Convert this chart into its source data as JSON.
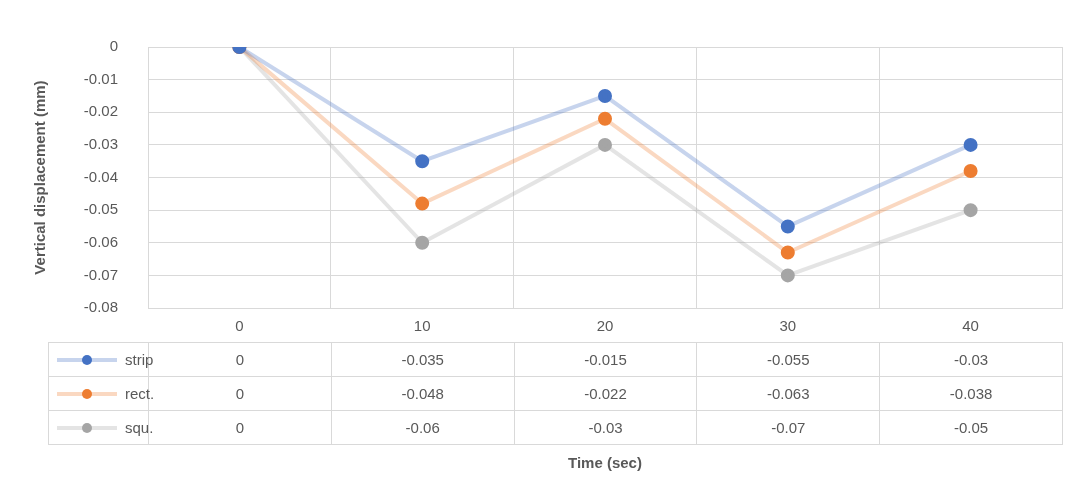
{
  "chart_data": {
    "type": "line",
    "annotations": [
      "Time (sec)"
    ],
    "ylabel": "Vertical displacement (mm)",
    "categories": [
      "0",
      "10",
      "20",
      "30",
      "40"
    ],
    "series": [
      {
        "name": "strip",
        "color": "#4472c4",
        "values": [
          0,
          -0.035,
          -0.015,
          -0.055,
          -0.03
        ]
      },
      {
        "name": "rect.",
        "color": "#ed7d31",
        "values": [
          0,
          -0.048,
          -0.022,
          -0.063,
          -0.038
        ]
      },
      {
        "name": "squ.",
        "color": "#a5a5a5",
        "values": [
          0,
          -0.06,
          -0.03,
          -0.07,
          -0.05
        ]
      }
    ],
    "ylim": [
      -0.08,
      0
    ],
    "yticks": [
      0,
      -0.01,
      -0.02,
      -0.03,
      -0.04,
      -0.05,
      -0.06,
      -0.07,
      -0.08
    ],
    "grid": true,
    "marker": "circle",
    "line_style": "solid",
    "data_labels": true,
    "legend": "bottom"
  }
}
